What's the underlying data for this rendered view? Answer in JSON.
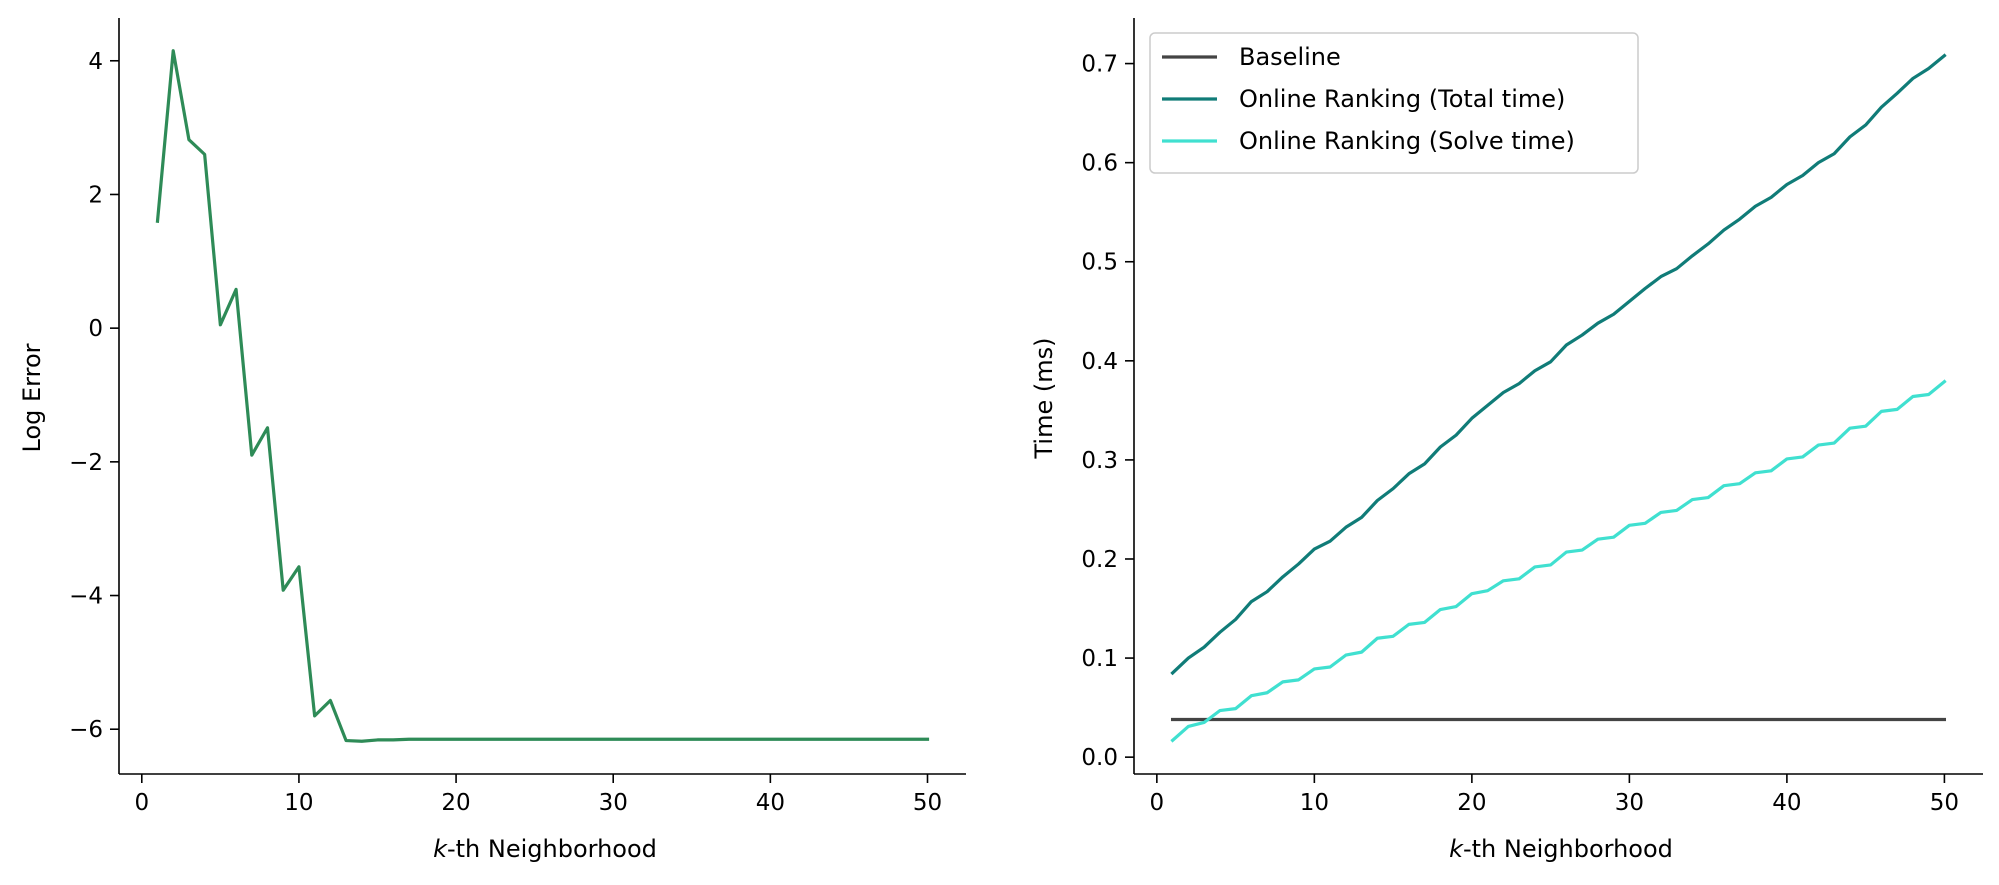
{
  "chart_data": [
    {
      "type": "line",
      "xlabel_italic": "k",
      "xlabel_rest": "-th Neighborhood",
      "ylabel": "Log Error",
      "xlim": [
        -1.45,
        52.45
      ],
      "ylim": [
        -6.67,
        4.64
      ],
      "xticks": [
        0,
        10,
        20,
        30,
        40,
        50
      ],
      "yticks": [
        -6,
        -4,
        -2,
        0,
        2,
        4
      ],
      "ytick_labels": [
        "−6",
        "−4",
        "−2",
        "0",
        "2",
        "4"
      ],
      "grid": false,
      "series": [
        {
          "color": "#2e8b57",
          "x": [
            1,
            2,
            3,
            4,
            5,
            6,
            7,
            8,
            9,
            10,
            11,
            12,
            13,
            14,
            15,
            16,
            17,
            18,
            19,
            20,
            21,
            22,
            23,
            24,
            25,
            26,
            27,
            28,
            29,
            30,
            31,
            32,
            33,
            34,
            35,
            36,
            37,
            38,
            39,
            40,
            41,
            42,
            43,
            44,
            45,
            46,
            47,
            48,
            49,
            50
          ],
          "y": [
            1.6,
            4.15,
            2.82,
            2.6,
            0.05,
            0.58,
            -1.9,
            -1.49,
            -3.92,
            -3.57,
            -5.8,
            -5.57,
            -6.17,
            -6.18,
            -6.16,
            -6.16,
            -6.15,
            -6.15,
            -6.15,
            -6.15,
            -6.15,
            -6.15,
            -6.15,
            -6.15,
            -6.15,
            -6.15,
            -6.15,
            -6.15,
            -6.15,
            -6.15,
            -6.15,
            -6.15,
            -6.15,
            -6.15,
            -6.15,
            -6.15,
            -6.15,
            -6.15,
            -6.15,
            -6.15,
            -6.15,
            -6.15,
            -6.15,
            -6.15,
            -6.15,
            -6.15,
            -6.15,
            -6.15,
            -6.15,
            -6.15
          ]
        }
      ]
    },
    {
      "type": "line",
      "xlabel_italic": "k",
      "xlabel_rest": "-th Neighborhood",
      "ylabel": "Time (ms)",
      "xlim": [
        -1.45,
        52.45
      ],
      "ylim": [
        -0.017,
        0.746
      ],
      "xticks": [
        0,
        10,
        20,
        30,
        40,
        50
      ],
      "yticks": [
        0.0,
        0.1,
        0.2,
        0.3,
        0.4,
        0.5,
        0.6,
        0.7
      ],
      "ytick_labels": [
        "0.0",
        "0.1",
        "0.2",
        "0.3",
        "0.4",
        "0.5",
        "0.6",
        "0.7"
      ],
      "grid": false,
      "legend_position": "top-left",
      "series": [
        {
          "name": "Baseline",
          "color": "#444444",
          "x": [
            1,
            50
          ],
          "y": [
            0.038,
            0.038
          ]
        },
        {
          "name": "Online Ranking (Total time)",
          "color": "#107c78",
          "x": [
            1,
            2,
            3,
            4,
            5,
            6,
            7,
            8,
            9,
            10,
            11,
            12,
            13,
            14,
            15,
            16,
            17,
            18,
            19,
            20,
            21,
            22,
            23,
            24,
            25,
            26,
            27,
            28,
            29,
            30,
            31,
            32,
            33,
            34,
            35,
            36,
            37,
            38,
            39,
            40,
            41,
            42,
            43,
            44,
            45,
            46,
            47,
            48,
            49,
            50
          ],
          "y": [
            0.085,
            0.1,
            0.111,
            0.126,
            0.139,
            0.157,
            0.167,
            0.182,
            0.195,
            0.21,
            0.218,
            0.232,
            0.242,
            0.259,
            0.271,
            0.286,
            0.296,
            0.313,
            0.325,
            0.342,
            0.355,
            0.368,
            0.377,
            0.39,
            0.399,
            0.416,
            0.426,
            0.438,
            0.447,
            0.46,
            0.473,
            0.485,
            0.493,
            0.506,
            0.518,
            0.532,
            0.543,
            0.556,
            0.565,
            0.578,
            0.587,
            0.6,
            0.609,
            0.626,
            0.638,
            0.656,
            0.67,
            0.685,
            0.695,
            0.708
          ]
        },
        {
          "name": "Online Ranking (Solve time)",
          "color": "#40e0d0",
          "x": [
            1,
            2,
            3,
            4,
            5,
            6,
            7,
            8,
            9,
            10,
            11,
            12,
            13,
            14,
            15,
            16,
            17,
            18,
            19,
            20,
            21,
            22,
            23,
            24,
            25,
            26,
            27,
            28,
            29,
            30,
            31,
            32,
            33,
            34,
            35,
            36,
            37,
            38,
            39,
            40,
            41,
            42,
            43,
            44,
            45,
            46,
            47,
            48,
            49,
            50
          ],
          "y": [
            0.017,
            0.031,
            0.035,
            0.047,
            0.049,
            0.062,
            0.065,
            0.076,
            0.078,
            0.089,
            0.091,
            0.103,
            0.106,
            0.12,
            0.122,
            0.134,
            0.136,
            0.149,
            0.152,
            0.165,
            0.168,
            0.178,
            0.18,
            0.192,
            0.194,
            0.207,
            0.209,
            0.22,
            0.222,
            0.234,
            0.236,
            0.247,
            0.249,
            0.26,
            0.262,
            0.274,
            0.276,
            0.287,
            0.289,
            0.301,
            0.303,
            0.315,
            0.317,
            0.332,
            0.334,
            0.349,
            0.351,
            0.364,
            0.366,
            0.379
          ]
        }
      ]
    }
  ]
}
